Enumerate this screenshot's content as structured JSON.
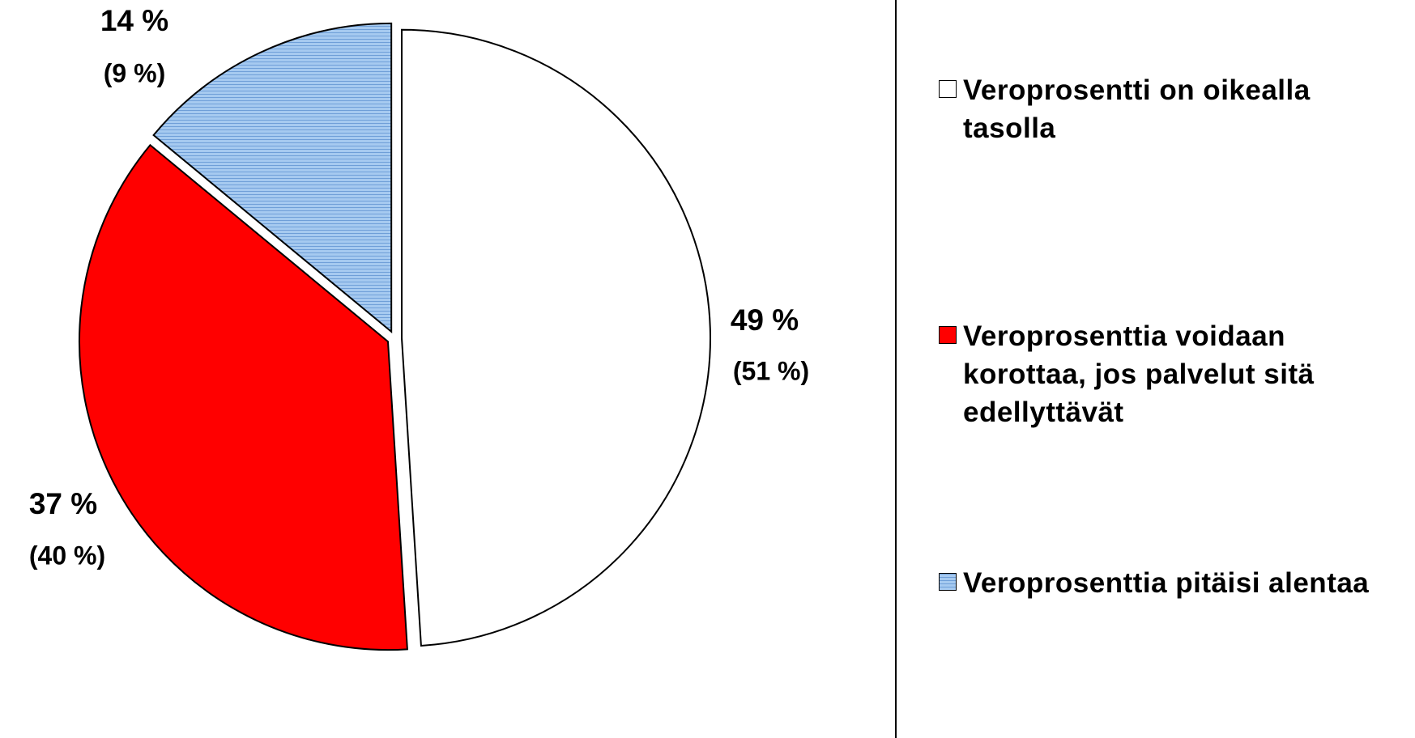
{
  "chart_data": {
    "type": "pie",
    "categories": [
      "Veroprosentti on oikealla tasolla",
      "Veroprosenttia voidaan korottaa, jos palvelut sitä edellyttävät",
      "Veroprosenttia pitäisi alentaa"
    ],
    "series": [
      {
        "values": [
          49,
          37,
          14
        ],
        "value_labels": [
          "49 %",
          "37 %",
          "14 %"
        ]
      },
      {
        "values": [
          51,
          40,
          9
        ],
        "value_labels": [
          "(51 %)",
          "(40 %)",
          "(9 %)"
        ]
      }
    ],
    "colors": [
      "#ffffff",
      "#ff0000",
      "#a6caf0"
    ],
    "hatch": [
      false,
      false,
      true
    ]
  }
}
